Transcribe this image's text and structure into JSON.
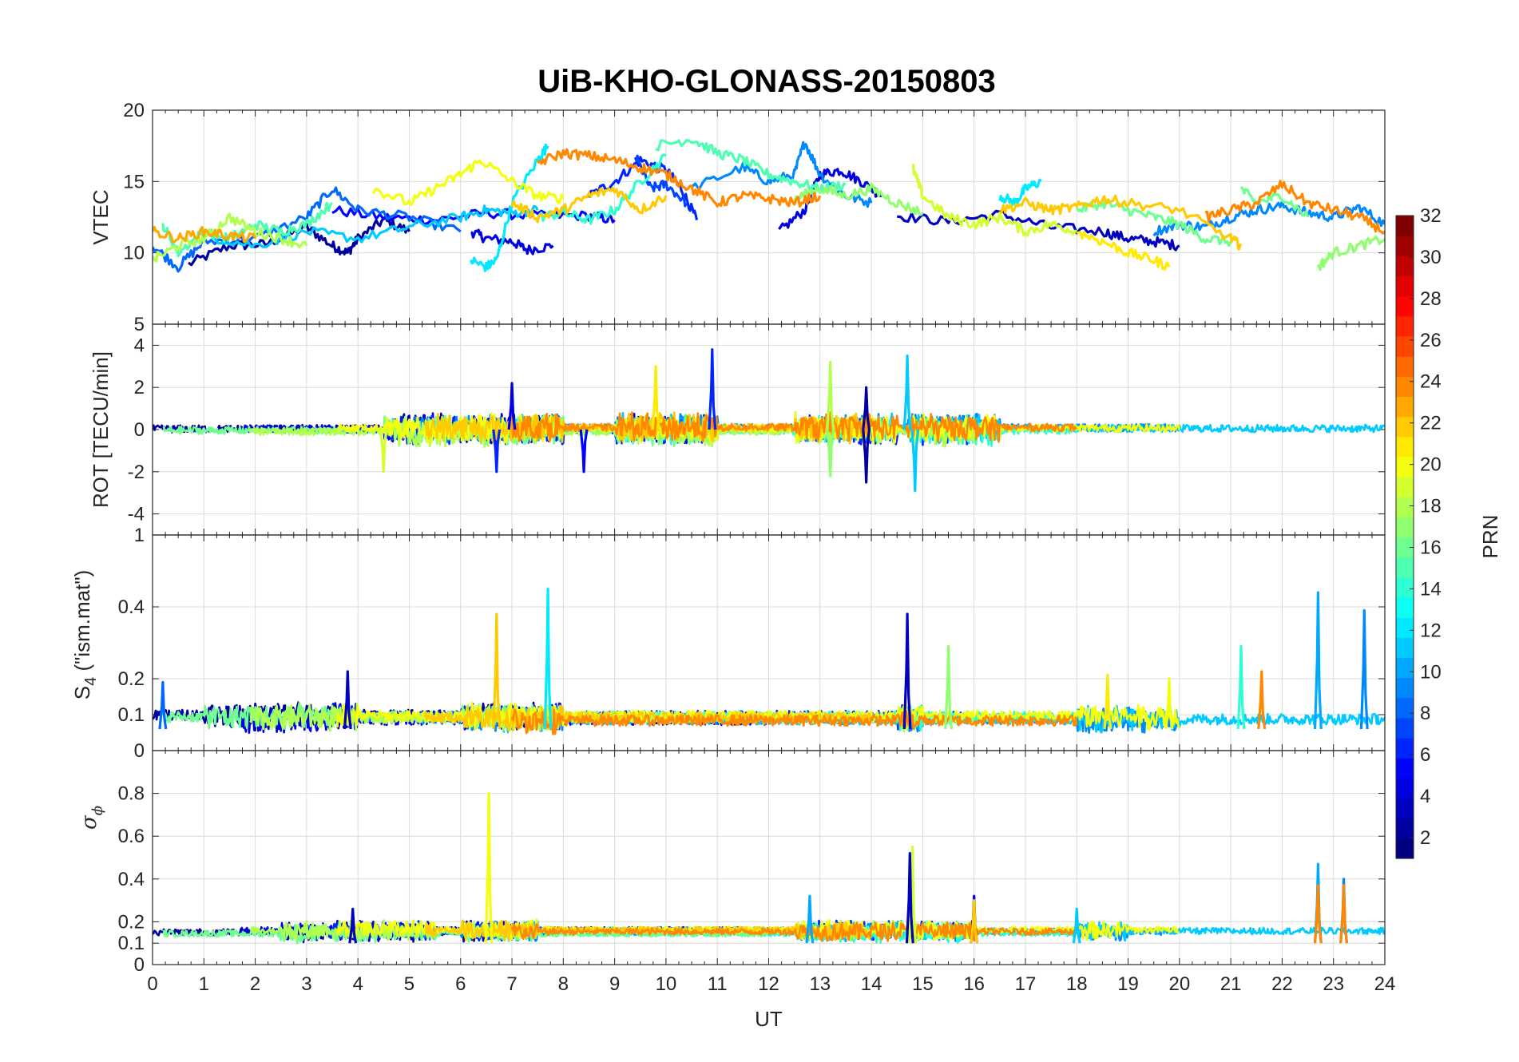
{
  "figure": {
    "title": "UiB-KHO-GLONASS-20150803"
  },
  "chart_data": [
    {
      "id": "vtec",
      "type": "line",
      "ylabel": "VTEC",
      "ylim": [
        5,
        20
      ],
      "yticks": [
        5,
        10,
        15,
        20
      ],
      "xlim": [
        0,
        24
      ],
      "grid": true,
      "series": [
        {
          "prn": 2,
          "x": [
            0.7,
            1.5,
            2.2,
            3.0,
            3.5,
            3.8,
            4.0,
            4.5,
            5.0
          ],
          "y": [
            9.2,
            10.5,
            10.6,
            11.8,
            10.5,
            10.0,
            11.0,
            12.3,
            11.5
          ]
        },
        {
          "prn": 4,
          "x": [
            6.2,
            6.5,
            7.0,
            7.3,
            7.8
          ],
          "y": [
            11.5,
            11.0,
            10.8,
            10.2,
            10.5
          ]
        },
        {
          "prn": 5,
          "x": [
            3.5,
            4.5,
            5.5,
            6.5,
            7.5,
            8.5,
            9.0
          ],
          "y": [
            13.0,
            12.5,
            12.3,
            12.8,
            12.6,
            12.6,
            12.3
          ]
        },
        {
          "prn": 6,
          "x": [
            8.5,
            9.0,
            9.5,
            10.0,
            10.3,
            10.6
          ],
          "y": [
            14.0,
            15.0,
            16.5,
            15.8,
            14.5,
            12.3
          ]
        },
        {
          "prn": 4,
          "x": [
            12.2,
            12.7,
            13.0,
            13.4,
            13.8,
            14.2
          ],
          "y": [
            11.5,
            13.0,
            15.5,
            15.8,
            15.0,
            14.0
          ]
        },
        {
          "prn": 3,
          "x": [
            14.5,
            15.5,
            16.5,
            17.5,
            18.5,
            19.0,
            19.5,
            20.0
          ],
          "y": [
            12.6,
            12.2,
            12.7,
            11.8,
            11.5,
            11.0,
            10.8,
            10.5
          ]
        },
        {
          "prn": 8,
          "x": [
            0.0,
            0.5,
            1.0,
            2.0,
            3.0,
            3.5,
            4.0,
            5.0,
            6.0
          ],
          "y": [
            10.5,
            9.0,
            10.8,
            11.0,
            12.5,
            14.5,
            13.0,
            12.5,
            11.5
          ]
        },
        {
          "prn": 7,
          "x": [
            9.4,
            9.7,
            10.0,
            10.4
          ],
          "y": [
            16.8,
            14.5,
            14.8,
            13.5
          ]
        },
        {
          "prn": 9,
          "x": [
            10.5,
            11.5,
            12.0,
            12.5,
            12.7,
            13.0,
            13.5,
            14.0
          ],
          "y": [
            14.5,
            16.0,
            15.0,
            15.5,
            17.8,
            15.5,
            14.0,
            13.5
          ]
        },
        {
          "prn": 9,
          "x": [
            19.5,
            20.0,
            20.5,
            21.0,
            21.5,
            22.0,
            22.5,
            23.0,
            23.5,
            24.0
          ],
          "y": [
            11.5,
            12.0,
            11.8,
            12.5,
            13.0,
            13.3,
            12.8,
            12.5,
            13.2,
            12.0
          ]
        },
        {
          "prn": 11,
          "x": [
            1.0,
            2.0,
            3.0,
            4.0,
            5.0,
            6.0,
            6.5,
            7.0,
            7.5
          ],
          "y": [
            11.2,
            10.5,
            11.5,
            11.0,
            11.8,
            12.5,
            13.0,
            12.8,
            13.0
          ]
        },
        {
          "prn": 12,
          "x": [
            6.2,
            6.5,
            6.7,
            7.0,
            7.5,
            7.7
          ],
          "y": [
            9.5,
            9.0,
            9.5,
            13.5,
            16.5,
            17.5
          ]
        },
        {
          "prn": 12,
          "x": [
            16.5,
            16.8,
            17.0,
            17.3
          ],
          "y": [
            14.0,
            13.5,
            14.5,
            15.0
          ]
        },
        {
          "prn": 14,
          "x": [
            7.5,
            8.0,
            8.5,
            9.0,
            9.5,
            10.0
          ],
          "y": [
            12.5,
            12.8,
            12.3,
            13.0,
            15.0,
            16.8
          ]
        },
        {
          "prn": 15,
          "x": [
            0.2,
            0.5,
            1.0,
            1.5,
            2.0,
            2.5,
            3.0,
            3.5
          ],
          "y": [
            12.0,
            10.0,
            11.5,
            11.0,
            12.0,
            11.5,
            12.0,
            13.5
          ]
        },
        {
          "prn": 15,
          "x": [
            9.8,
            10.5,
            11.0,
            11.5,
            12.0,
            12.5,
            13.0,
            13.5
          ],
          "y": [
            17.5,
            18.0,
            17.0,
            16.5,
            15.5,
            15.0,
            14.5,
            14.8
          ]
        },
        {
          "prn": 16,
          "x": [
            18.0,
            18.5,
            19.0,
            19.5,
            20.0,
            20.5,
            21.0
          ],
          "y": [
            13.0,
            13.5,
            13.0,
            12.5,
            12.0,
            11.0,
            10.8
          ]
        },
        {
          "prn": 16,
          "x": [
            21.2,
            21.5,
            22.0,
            22.5
          ],
          "y": [
            14.5,
            13.5,
            14.0,
            12.5
          ]
        },
        {
          "prn": 17,
          "x": [
            12.5,
            13.0,
            13.5,
            14.0,
            14.5,
            15.0
          ],
          "y": [
            13.8,
            14.5,
            14.0,
            14.5,
            13.5,
            12.8
          ]
        },
        {
          "prn": 17,
          "x": [
            22.7,
            23.0,
            23.5,
            24.0
          ],
          "y": [
            9.0,
            10.0,
            10.5,
            11.0
          ]
        },
        {
          "prn": 18,
          "x": [
            0.0,
            0.5,
            1.0,
            1.5,
            2.0,
            2.5,
            3.0
          ],
          "y": [
            9.5,
            10.5,
            11.0,
            12.5,
            11.5,
            11.0,
            10.5
          ]
        },
        {
          "prn": 19,
          "x": [
            14.8,
            15.0,
            15.5,
            16.0,
            16.5,
            17.0,
            17.5,
            18.0
          ],
          "y": [
            16.0,
            14.0,
            12.5,
            12.0,
            12.5,
            11.5,
            12.0,
            11.5
          ]
        },
        {
          "prn": 20,
          "x": [
            4.3,
            5.0,
            5.5,
            6.0,
            6.4,
            7.0,
            7.5,
            8.0
          ],
          "y": [
            14.5,
            13.5,
            14.5,
            15.5,
            16.5,
            15.0,
            14.0,
            13.8
          ]
        },
        {
          "prn": 21,
          "x": [
            18.0,
            18.5,
            19.0,
            19.5,
            19.8
          ],
          "y": [
            11.5,
            10.8,
            10.0,
            9.5,
            9.0
          ]
        },
        {
          "prn": 22,
          "x": [
            7.0,
            7.5,
            8.0,
            8.5,
            9.0,
            9.5,
            10.0
          ],
          "y": [
            13.5,
            12.5,
            13.0,
            14.0,
            14.5,
            13.0,
            14.0
          ]
        },
        {
          "prn": 22,
          "x": [
            16.5,
            17.0,
            17.5,
            18.0,
            18.5,
            19.0,
            20.0,
            21.0,
            21.2
          ],
          "y": [
            13.0,
            13.5,
            13.0,
            13.2,
            13.8,
            13.5,
            13.0,
            11.0,
            10.5
          ]
        },
        {
          "prn": 23,
          "x": [
            0.0,
            0.5,
            1.0,
            1.5,
            2.0
          ],
          "y": [
            11.5,
            11.0,
            11.5,
            11.2,
            11.0
          ]
        },
        {
          "prn": 24,
          "x": [
            7.5,
            8.0,
            8.5,
            9.0,
            9.5,
            10.0,
            10.5,
            11.0,
            11.5,
            12.0,
            12.5,
            13.0
          ],
          "y": [
            16.3,
            17.0,
            16.8,
            16.5,
            16.0,
            15.5,
            14.5,
            13.5,
            14.0,
            13.8,
            13.5,
            14.0
          ]
        },
        {
          "prn": 24,
          "x": [
            20.5,
            21.0,
            21.5,
            22.0,
            22.5,
            23.0,
            23.5,
            24.0
          ],
          "y": [
            12.5,
            13.0,
            13.5,
            14.8,
            13.5,
            13.0,
            12.5,
            11.5
          ]
        }
      ]
    },
    {
      "id": "rot",
      "type": "line",
      "ylabel": "ROT [TECU/min]",
      "ylim": [
        -5,
        5
      ],
      "yticks": [
        -4,
        -2,
        0,
        2,
        4
      ],
      "xlim": [
        0,
        24
      ],
      "grid": true,
      "spikes": [
        {
          "prn": 6,
          "x": 10.9,
          "y": 3.8
        },
        {
          "prn": 4,
          "x": 7.0,
          "y": 2.2
        },
        {
          "prn": 2,
          "x": 13.9,
          "y": -2.5
        },
        {
          "prn": 2,
          "x": 13.9,
          "y": 2.0
        },
        {
          "prn": 21,
          "x": 9.8,
          "y": 3.0
        },
        {
          "prn": 18,
          "x": 13.2,
          "y": 3.2
        },
        {
          "prn": 11,
          "x": 14.7,
          "y": 3.5
        },
        {
          "prn": 11,
          "x": 14.85,
          "y": -2.9
        },
        {
          "prn": 5,
          "x": 8.4,
          "y": -2.0
        },
        {
          "prn": 6,
          "x": 6.7,
          "y": -2.0
        },
        {
          "prn": 19,
          "x": 4.5,
          "y": -2.0
        },
        {
          "prn": 17,
          "x": 13.2,
          "y": -2.2
        }
      ]
    },
    {
      "id": "s4",
      "type": "line",
      "ylabel_main": "S",
      "ylabel_sub": "4",
      "ylabel_rest": " (\"ism.mat\")",
      "ylim": [
        0,
        0.6
      ],
      "yticks": [
        0,
        0.1,
        0.2,
        0.4
      ],
      "extra_tick_label": "1",
      "xlim": [
        0,
        24
      ],
      "grid": true,
      "spikes": [
        {
          "prn": 3,
          "x": 3.8,
          "y": 0.22
        },
        {
          "prn": 22,
          "x": 6.7,
          "y": 0.38
        },
        {
          "prn": 12,
          "x": 7.7,
          "y": 0.45
        },
        {
          "prn": 3,
          "x": 14.7,
          "y": 0.38
        },
        {
          "prn": 17,
          "x": 15.5,
          "y": 0.29
        },
        {
          "prn": 10,
          "x": 22.7,
          "y": 0.44
        },
        {
          "prn": 9,
          "x": 23.6,
          "y": 0.39
        },
        {
          "prn": 14,
          "x": 21.2,
          "y": 0.29
        },
        {
          "prn": 24,
          "x": 21.6,
          "y": 0.22
        },
        {
          "prn": 21,
          "x": 18.6,
          "y": 0.21
        },
        {
          "prn": 20,
          "x": 19.8,
          "y": 0.2
        },
        {
          "prn": 8,
          "x": 0.2,
          "y": 0.19
        }
      ]
    },
    {
      "id": "sigma",
      "type": "line",
      "ylabel_greek": "σ",
      "ylabel_sub": "ϕ",
      "ylim": [
        0,
        1
      ],
      "yticks": [
        0,
        0.1,
        0.2,
        0.4,
        0.6,
        0.8
      ],
      "xlim": [
        0,
        24
      ],
      "xlabel": "UT",
      "xticks": [
        0,
        1,
        2,
        3,
        4,
        5,
        6,
        7,
        8,
        9,
        10,
        11,
        12,
        13,
        14,
        15,
        16,
        17,
        18,
        19,
        20,
        21,
        22,
        23,
        24
      ],
      "grid": true,
      "spikes": [
        {
          "prn": 20,
          "x": 6.55,
          "y": 0.8
        },
        {
          "prn": 19,
          "x": 14.8,
          "y": 0.55
        },
        {
          "prn": 3,
          "x": 14.75,
          "y": 0.52
        },
        {
          "prn": 10,
          "x": 22.7,
          "y": 0.47
        },
        {
          "prn": 24,
          "x": 22.7,
          "y": 0.37
        },
        {
          "prn": 9,
          "x": 23.2,
          "y": 0.4
        },
        {
          "prn": 24,
          "x": 23.2,
          "y": 0.37
        },
        {
          "prn": 10,
          "x": 12.8,
          "y": 0.32
        },
        {
          "prn": 4,
          "x": 16.0,
          "y": 0.32
        },
        {
          "prn": 22,
          "x": 16.0,
          "y": 0.3
        },
        {
          "prn": 3,
          "x": 3.9,
          "y": 0.26
        },
        {
          "prn": 11,
          "x": 18.0,
          "y": 0.26
        }
      ]
    }
  ],
  "colorbar": {
    "label": "PRN",
    "colormap": "jet",
    "clim": [
      1,
      32
    ],
    "ticks": [
      2,
      4,
      6,
      8,
      10,
      12,
      14,
      16,
      18,
      20,
      22,
      24,
      26,
      28,
      30,
      32
    ]
  }
}
